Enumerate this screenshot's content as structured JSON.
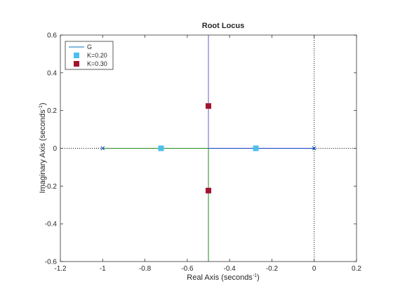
{
  "chart_data": {
    "type": "scatter",
    "title": "Root Locus",
    "xlabel": "Real Axis (seconds",
    "ylabel": "Imaginary Axis (seconds",
    "label_superscript": "-1",
    "label_close": ")",
    "xlim": [
      -1.2,
      0.2
    ],
    "ylim": [
      -0.6,
      0.6
    ],
    "xticks": [
      -1.2,
      -1,
      -0.8,
      -0.6,
      -0.4,
      -0.2,
      0,
      0.2
    ],
    "yticks": [
      -0.6,
      -0.4,
      -0.2,
      0,
      0.2,
      0.4,
      0.6
    ],
    "grid": false,
    "legend_position": "top-left",
    "poles": [
      {
        "x": -1,
        "y": 0
      },
      {
        "x": 0,
        "y": 0
      }
    ],
    "branches": [
      {
        "color": "#0b3fc0",
        "points": [
          [
            0,
            0
          ],
          [
            -0.5,
            0
          ]
        ]
      },
      {
        "color": "#218b21",
        "points": [
          [
            -1,
            0
          ],
          [
            -0.5,
            0
          ]
        ]
      },
      {
        "color": "#6a5acd",
        "points": [
          [
            -0.5,
            0
          ],
          [
            -0.5,
            0.6
          ]
        ]
      },
      {
        "color": "#218b21",
        "points": [
          [
            -0.5,
            0
          ],
          [
            -0.5,
            -0.6
          ]
        ]
      }
    ],
    "asymptote_lines": [
      {
        "points": [
          [
            -1.2,
            0
          ],
          [
            -1,
            0
          ]
        ]
      },
      {
        "points": [
          [
            0,
            0
          ],
          [
            0.2,
            0
          ]
        ]
      },
      {
        "points": [
          [
            0,
            -0.6
          ],
          [
            0,
            0.6
          ]
        ]
      }
    ],
    "series": [
      {
        "name": "G",
        "kind": "line",
        "color": "#0072bd"
      },
      {
        "name": "K=0.20",
        "kind": "marker",
        "color": "#4dbeee",
        "points": [
          [
            -0.724,
            0
          ],
          [
            -0.276,
            0
          ]
        ]
      },
      {
        "name": "K=0.30",
        "kind": "marker",
        "color": "#a2142f",
        "points": [
          [
            -0.5,
            0.224
          ],
          [
            -0.5,
            -0.224
          ]
        ]
      }
    ]
  }
}
